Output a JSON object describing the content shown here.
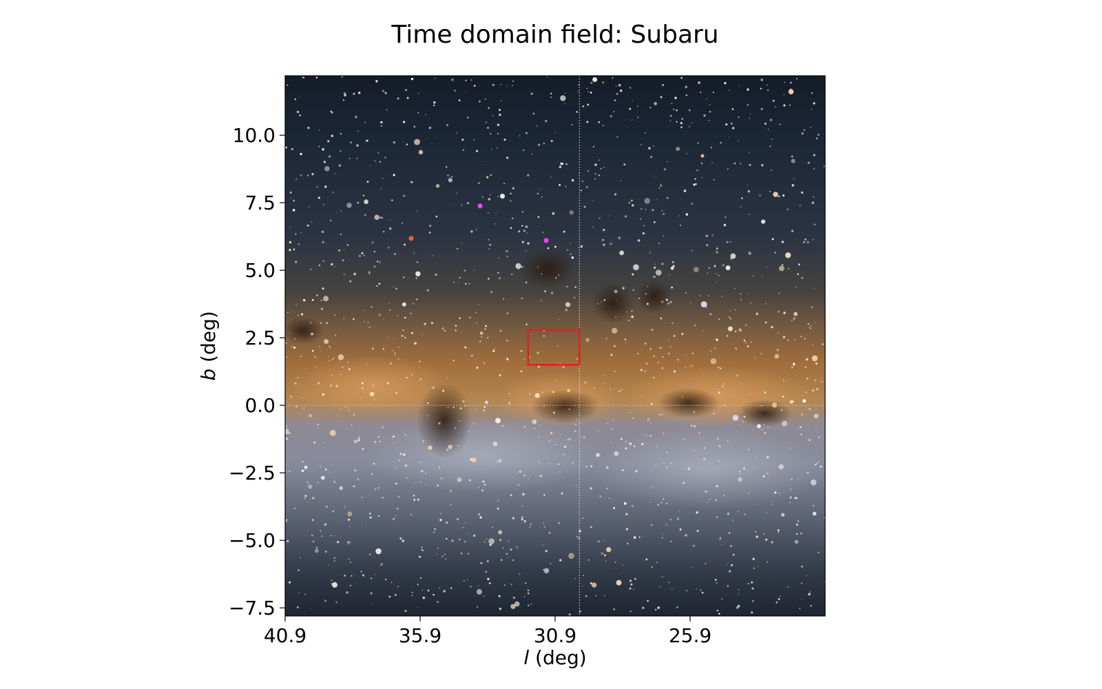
{
  "chart_data": {
    "type": "heatmap",
    "title": "Time domain field: Subaru",
    "xlabel_var": "l",
    "xlabel_unit": " (deg)",
    "ylabel_var": "b",
    "ylabel_unit": " (deg)",
    "xlim": [
      40.9,
      20.9
    ],
    "ylim": [
      -7.8,
      12.2
    ],
    "xticks": [
      40.9,
      35.9,
      30.9,
      25.9
    ],
    "xtick_labels": [
      "40.9",
      "35.9",
      "30.9",
      "25.9"
    ],
    "yticks": [
      10.0,
      7.5,
      5.0,
      2.5,
      0.0,
      -2.5,
      -5.0,
      -7.5
    ],
    "ytick_labels": [
      "10.0",
      "7.5",
      "5.0",
      "2.5",
      "0.0",
      "−2.5",
      "−5.0",
      "−7.5"
    ],
    "guide_lines": {
      "l": 30.0,
      "b": 0.0
    },
    "field_box": {
      "l_min": 30.0,
      "l_max": 31.9,
      "b_min": 1.5,
      "b_max": 2.8,
      "color": "#e02020"
    },
    "background_image": "Milky Way galactic plane star field (dust lanes and bright stars)",
    "grid": false
  }
}
